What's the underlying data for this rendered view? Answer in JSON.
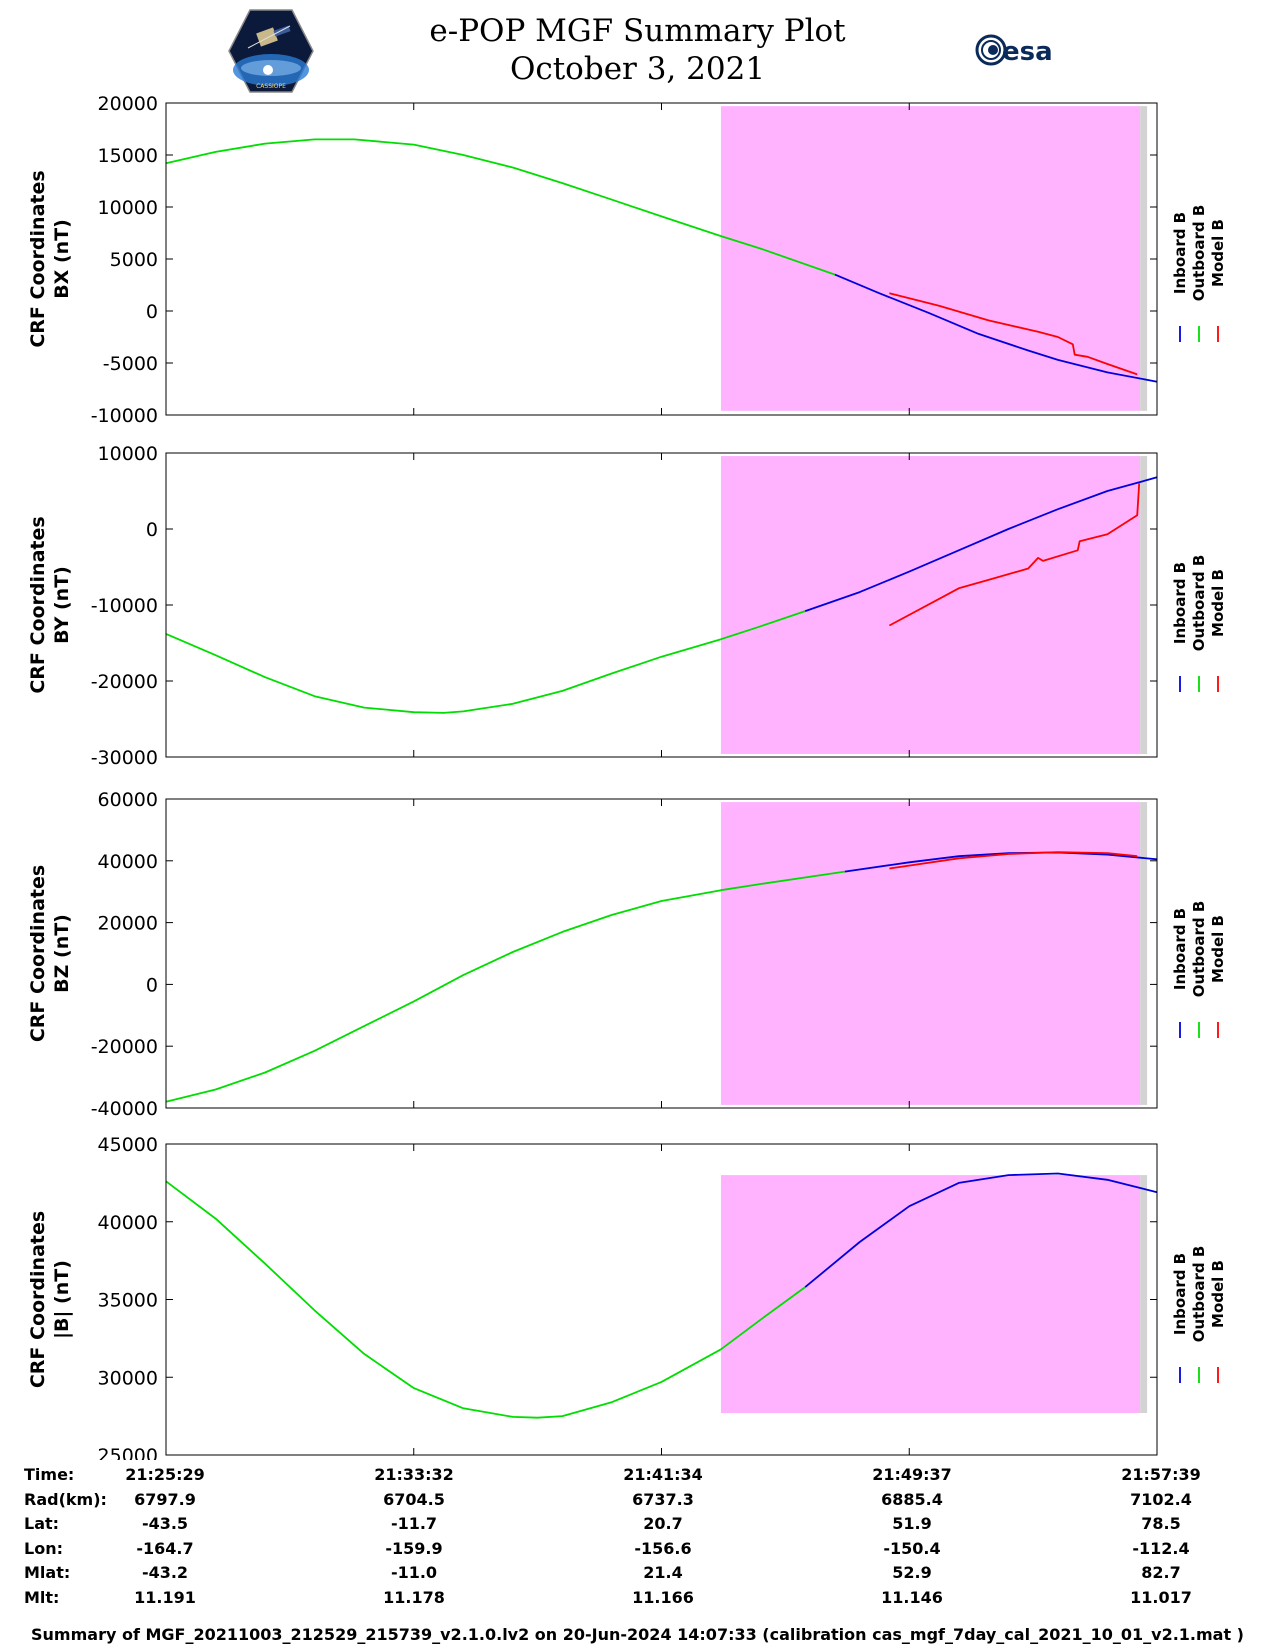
{
  "header": {
    "title_line1": "e-POP MGF Summary Plot",
    "title_line2": "October 3, 2021",
    "logo_left_text": "CASSIOPE",
    "logo_right_text": "esa"
  },
  "legend": {
    "labels": [
      "Inboard B",
      "Outboard B",
      "Model B"
    ],
    "colors": {
      "inboard": "#0000dd",
      "outboard": "#00dd00",
      "model": "#ff0000"
    }
  },
  "colors": {
    "highlight": "#ffb3ff",
    "gray_strip": "#d3d3d3"
  },
  "chart_data": [
    {
      "type": "line",
      "ylabel_line1": "CRF Coordinates",
      "ylabel_line2": "BX (nT)",
      "ylim": [
        -10000,
        20000
      ],
      "yticks": [
        -10000,
        -5000,
        0,
        5000,
        10000,
        15000,
        20000
      ],
      "ytick_labels": [
        "-10000",
        "-5000",
        "0",
        "5000",
        "10000",
        "15000",
        "20000"
      ],
      "highlight_x": [
        0.56,
        0.983
      ],
      "highlight_y": [
        -9600,
        19700
      ],
      "gray_x": [
        0.983,
        0.99
      ],
      "series": [
        {
          "name": "Outboard B",
          "x": [
            0,
            0.05,
            0.1,
            0.15,
            0.19,
            0.25,
            0.3,
            0.35,
            0.4,
            0.45,
            0.5,
            0.56,
            0.6,
            0.675
          ],
          "y": [
            14200,
            15300,
            16100,
            16500,
            16500,
            16000,
            15000,
            13800,
            12300,
            10700,
            9100,
            7200,
            6000,
            3500
          ]
        },
        {
          "name": "Inboard B",
          "x": [
            0.675,
            0.72,
            0.77,
            0.82,
            0.87,
            0.9,
            0.95,
            1.0
          ],
          "y": [
            3500,
            1700,
            -200,
            -2200,
            -3800,
            -4700,
            -5900,
            -6800
          ]
        },
        {
          "name": "Model B",
          "x": [
            0.73,
            0.78,
            0.83,
            0.88,
            0.9,
            0.915,
            0.917,
            0.93,
            0.95,
            0.98
          ],
          "y": [
            1700,
            500,
            -900,
            -2000,
            -2500,
            -3200,
            -4200,
            -4400,
            -5100,
            -6100
          ]
        }
      ]
    },
    {
      "type": "line",
      "ylabel_line1": "CRF Coordinates",
      "ylabel_line2": "BY (nT)",
      "ylim": [
        -30000,
        10000
      ],
      "yticks": [
        -30000,
        -20000,
        -10000,
        0,
        10000
      ],
      "ytick_labels": [
        "-30000",
        "-20000",
        "-10000",
        "0",
        "10000"
      ],
      "highlight_x": [
        0.56,
        0.983
      ],
      "highlight_y": [
        -29600,
        9600
      ],
      "gray_x": [
        0.983,
        0.99
      ],
      "series": [
        {
          "name": "Outboard B",
          "x": [
            0,
            0.05,
            0.1,
            0.15,
            0.2,
            0.25,
            0.28,
            0.3,
            0.35,
            0.4,
            0.45,
            0.5,
            0.56,
            0.6,
            0.645
          ],
          "y": [
            -13800,
            -16600,
            -19500,
            -22000,
            -23500,
            -24100,
            -24200,
            -24000,
            -23000,
            -21300,
            -19000,
            -16800,
            -14500,
            -12800,
            -10800
          ]
        },
        {
          "name": "Inboard B",
          "x": [
            0.645,
            0.7,
            0.75,
            0.8,
            0.85,
            0.9,
            0.95,
            1.0
          ],
          "y": [
            -10800,
            -8300,
            -5600,
            -2800,
            0,
            2600,
            5000,
            6800
          ]
        },
        {
          "name": "Model B",
          "x": [
            0.73,
            0.78,
            0.8,
            0.83,
            0.87,
            0.88,
            0.885,
            0.92,
            0.922,
            0.95,
            0.98,
            0.982
          ],
          "y": [
            -12700,
            -9200,
            -7800,
            -6700,
            -5200,
            -3800,
            -4200,
            -2800,
            -1600,
            -700,
            1800,
            6000
          ]
        }
      ]
    },
    {
      "type": "line",
      "ylabel_line1": "CRF Coordinates",
      "ylabel_line2": "BZ (nT)",
      "ylim": [
        -40000,
        60000
      ],
      "yticks": [
        -40000,
        -20000,
        0,
        20000,
        40000,
        60000
      ],
      "ytick_labels": [
        "-40000",
        "-20000",
        "0",
        "20000",
        "40000",
        "60000"
      ],
      "highlight_x": [
        0.56,
        0.983
      ],
      "highlight_y": [
        -39000,
        59000
      ],
      "gray_x": [
        0.983,
        0.99
      ],
      "series": [
        {
          "name": "Outboard B",
          "x": [
            0,
            0.05,
            0.1,
            0.15,
            0.2,
            0.25,
            0.3,
            0.35,
            0.4,
            0.45,
            0.5,
            0.56,
            0.6,
            0.685
          ],
          "y": [
            -38000,
            -34000,
            -28500,
            -21500,
            -13500,
            -5500,
            3000,
            10500,
            17000,
            22500,
            27000,
            30500,
            32500,
            36500
          ]
        },
        {
          "name": "Inboard B",
          "x": [
            0.685,
            0.75,
            0.8,
            0.85,
            0.9,
            0.95,
            1.0
          ],
          "y": [
            36500,
            39500,
            41500,
            42500,
            42700,
            42000,
            40500
          ]
        },
        {
          "name": "Model B",
          "x": [
            0.73,
            0.8,
            0.85,
            0.9,
            0.95,
            0.98
          ],
          "y": [
            37500,
            40800,
            42200,
            42800,
            42500,
            41500
          ]
        }
      ]
    },
    {
      "type": "line",
      "ylabel_line1": "CRF Coordinates",
      "ylabel_line2": "|B| (nT)",
      "ylim": [
        25000,
        45000
      ],
      "yticks": [
        25000,
        30000,
        35000,
        40000,
        45000
      ],
      "ytick_labels": [
        "25000",
        "30000",
        "35000",
        "40000",
        "45000"
      ],
      "highlight_x": [
        0.56,
        0.983
      ],
      "highlight_y": [
        27700,
        43000
      ],
      "gray_x": [
        0.983,
        0.99
      ],
      "series": [
        {
          "name": "Outboard B",
          "x": [
            0,
            0.05,
            0.1,
            0.15,
            0.2,
            0.25,
            0.3,
            0.35,
            0.375,
            0.4,
            0.45,
            0.5,
            0.56,
            0.6,
            0.645
          ],
          "y": [
            42600,
            40200,
            37300,
            34300,
            31500,
            29300,
            28000,
            27450,
            27400,
            27500,
            28400,
            29700,
            31800,
            33700,
            35800
          ]
        },
        {
          "name": "Inboard B",
          "x": [
            0.645,
            0.7,
            0.75,
            0.8,
            0.85,
            0.9,
            0.95,
            1.0
          ],
          "y": [
            35800,
            38700,
            41000,
            42500,
            43000,
            43100,
            42700,
            41900
          ]
        },
        {
          "name": "Model B",
          "x": [],
          "y": []
        }
      ]
    }
  ],
  "x_axis": {
    "ticks": [
      0,
      0.25,
      0.5,
      0.75,
      1.0
    ]
  },
  "info_table": {
    "labels": [
      "Time:",
      "Rad(km):",
      "Lat:",
      "Lon:",
      "Mlat:",
      "Mlt:"
    ],
    "columns": [
      [
        "21:25:29",
        "6797.9",
        "-43.5",
        "-164.7",
        "-43.2",
        "11.191"
      ],
      [
        "21:33:32",
        "6704.5",
        "-11.7",
        "-159.9",
        "-11.0",
        "11.178"
      ],
      [
        "21:41:34",
        "6737.3",
        "20.7",
        "-156.6",
        "21.4",
        "11.166"
      ],
      [
        "21:49:37",
        "6885.4",
        "51.9",
        "-150.4",
        "52.9",
        "11.146"
      ],
      [
        "21:57:39",
        "7102.4",
        "78.5",
        "-112.4",
        "82.7",
        "11.017"
      ]
    ]
  },
  "footer": "Summary of MGF_20211003_212529_215739_v2.1.0.lv2 on 20-Jun-2024 14:07:33 (calibration cas_mgf_7day_cal_2021_10_01_v2.1.mat )"
}
